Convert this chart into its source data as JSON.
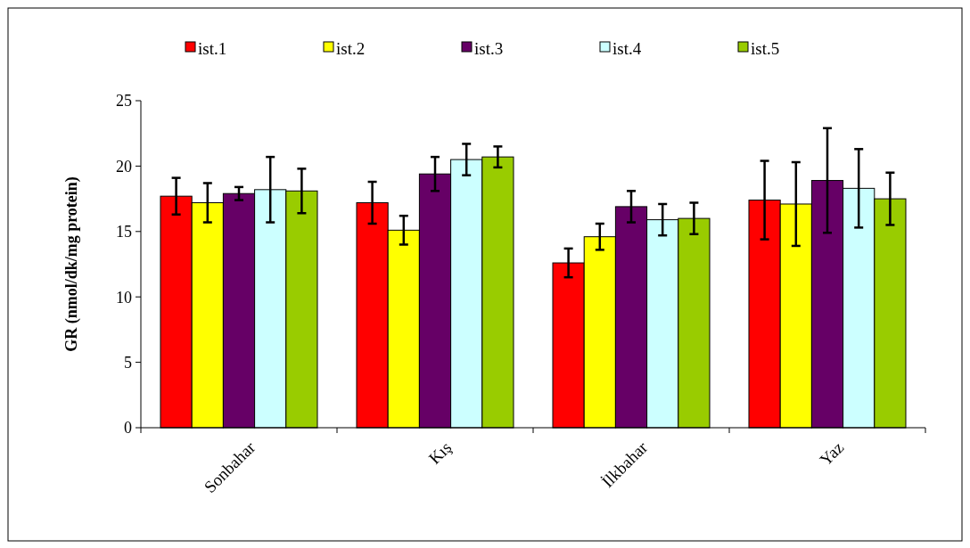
{
  "chart_data": {
    "type": "bar",
    "ylabel": "GR (nmol/dk/mg protein)",
    "categories": [
      "Sonbahar",
      "Kış",
      "İlkbahar",
      "Yaz"
    ],
    "series": [
      {
        "name": "ist.1",
        "color": "#ff0000",
        "values": [
          17.7,
          17.2,
          12.6,
          17.4
        ],
        "errors": [
          1.4,
          1.6,
          1.1,
          3.0
        ]
      },
      {
        "name": "ist.2",
        "color": "#ffff00",
        "values": [
          17.2,
          15.1,
          14.6,
          17.1
        ],
        "errors": [
          1.5,
          1.1,
          1.0,
          3.2
        ]
      },
      {
        "name": "ist.3",
        "color": "#660066",
        "values": [
          17.9,
          19.4,
          16.9,
          18.9
        ],
        "errors": [
          0.5,
          1.3,
          1.2,
          4.0
        ]
      },
      {
        "name": "ist.4",
        "color": "#ccffff",
        "values": [
          18.2,
          20.5,
          15.9,
          18.3
        ],
        "errors": [
          2.5,
          1.2,
          1.2,
          3.0
        ]
      },
      {
        "name": "ist.5",
        "color": "#99cc00",
        "values": [
          18.1,
          20.7,
          16.0,
          17.5
        ],
        "errors": [
          1.7,
          0.8,
          1.2,
          2.0
        ]
      }
    ],
    "ylim": [
      0,
      25
    ],
    "yticks": [
      0,
      5,
      10,
      15,
      20,
      25
    ],
    "grid": false,
    "legend": "top"
  }
}
